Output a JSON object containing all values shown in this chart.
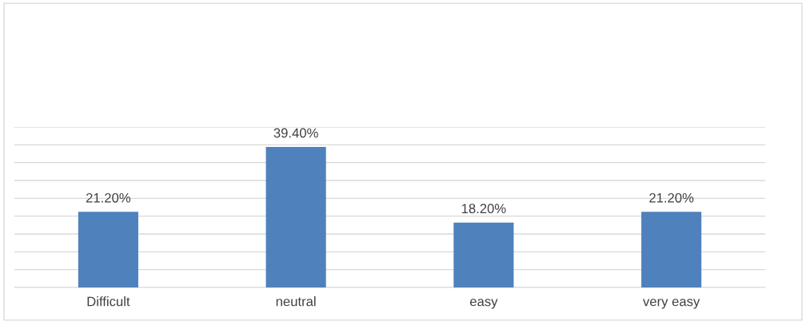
{
  "chart_data": {
    "type": "bar",
    "categories": [
      "Difficult",
      "neutral",
      "easy",
      "very easy"
    ],
    "values": [
      21.2,
      39.4,
      18.2,
      21.2
    ],
    "value_labels": [
      "21.20%",
      "39.40%",
      "18.20%",
      "21.20%"
    ],
    "color": "#4f81bd",
    "ylim": [
      0,
      45
    ],
    "yticks": [
      {
        "value": 0,
        "label": null
      },
      {
        "value": 5,
        "label": null
      },
      {
        "value": 10,
        "label": null
      },
      {
        "value": 15,
        "label": null
      },
      {
        "value": 20,
        "label": null
      },
      {
        "value": 25,
        "label": null
      },
      {
        "value": 30,
        "label": null
      },
      {
        "value": 35,
        "label": null
      },
      {
        "value": 40,
        "label": null
      },
      {
        "value": 45,
        "label": null
      }
    ],
    "tick_labels": "x",
    "grid": "y",
    "legend": false
  }
}
